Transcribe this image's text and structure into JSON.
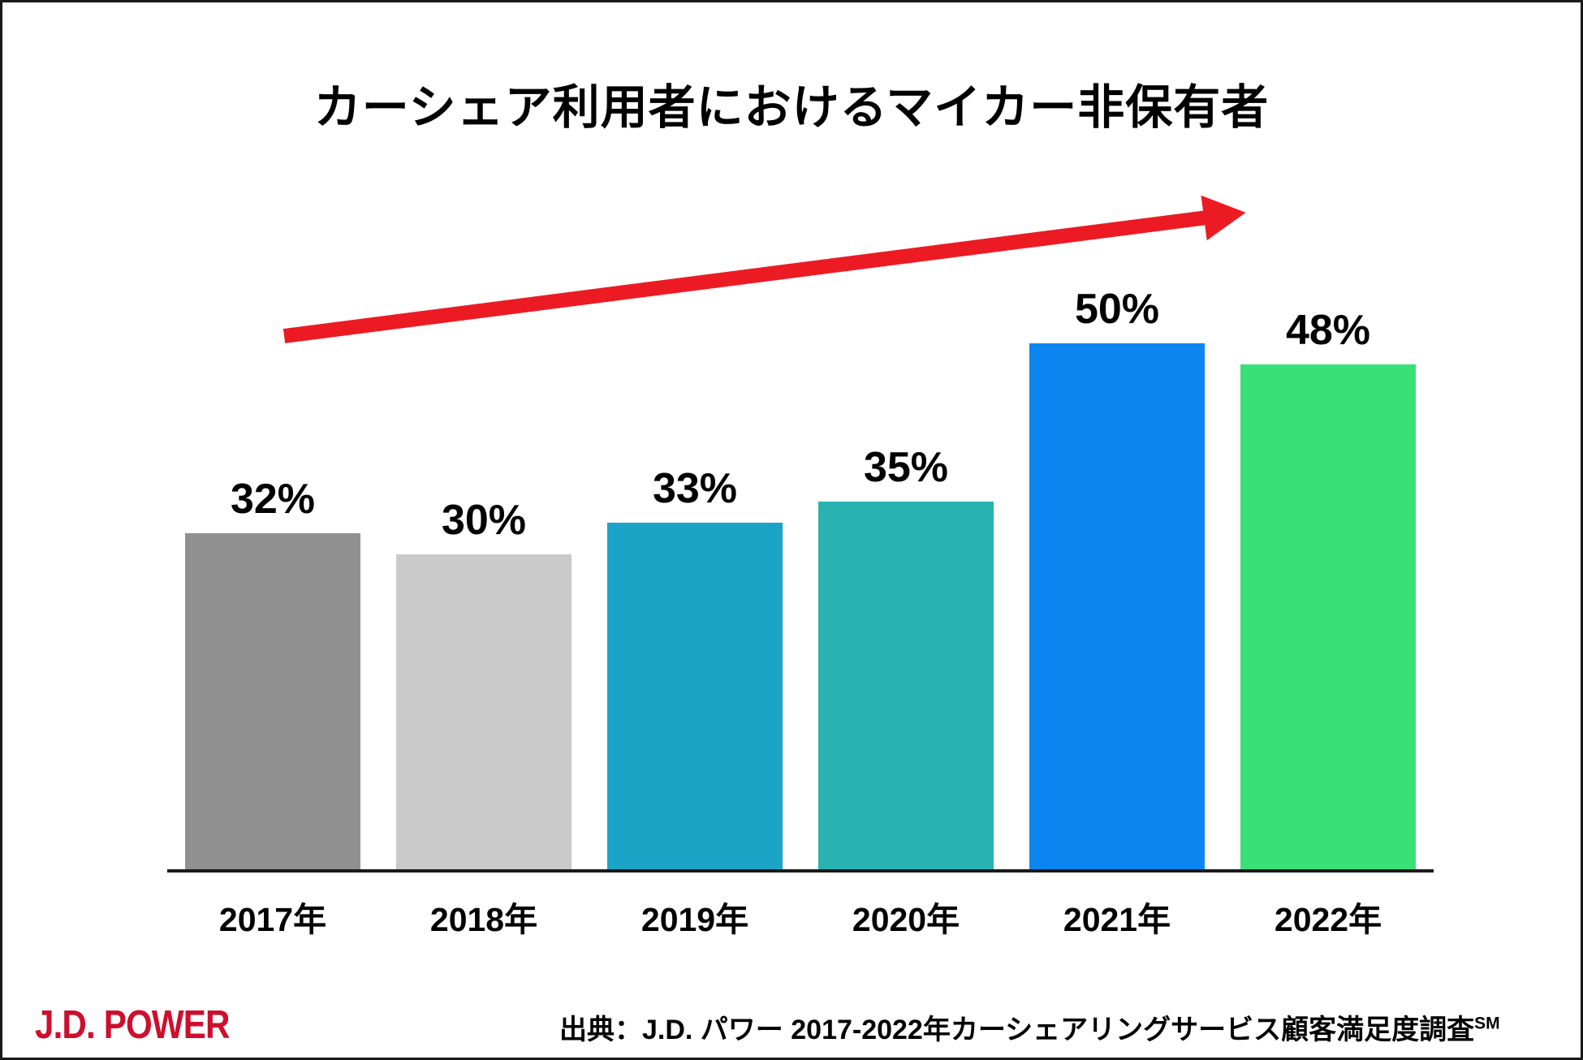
{
  "page": {
    "title": "カーシェア利用者におけるマイカー非保有者",
    "background": "#ffffff",
    "border_color": "#1a1a1a"
  },
  "chart_data": {
    "type": "bar",
    "title": "カーシェア利用者におけるマイカー非保有者",
    "categories": [
      "2017年",
      "2018年",
      "2019年",
      "2020年",
      "2021年",
      "2022年"
    ],
    "values": [
      32,
      30,
      33,
      35,
      50,
      48
    ],
    "value_labels": [
      "32%",
      "30%",
      "33%",
      "35%",
      "50%",
      "48%"
    ],
    "unit": "%",
    "bar_colors": [
      "#909090",
      "#C9C9C9",
      "#1CA4C6",
      "#28B3B0",
      "#0B86F1",
      "#38E077"
    ],
    "ylim": [
      0,
      55
    ],
    "grid": false,
    "legend": false,
    "annotations": [
      {
        "type": "arrow",
        "direction": "up-right",
        "color": "#EC1B23"
      }
    ]
  },
  "footer": {
    "logo_text": "J.D. POWER",
    "logo_color": "#CE0E2D",
    "source_text": "出典：J.D. パワー 2017-2022年カーシェアリングサービス顧客満足度調査",
    "source_superscript": "SM"
  }
}
